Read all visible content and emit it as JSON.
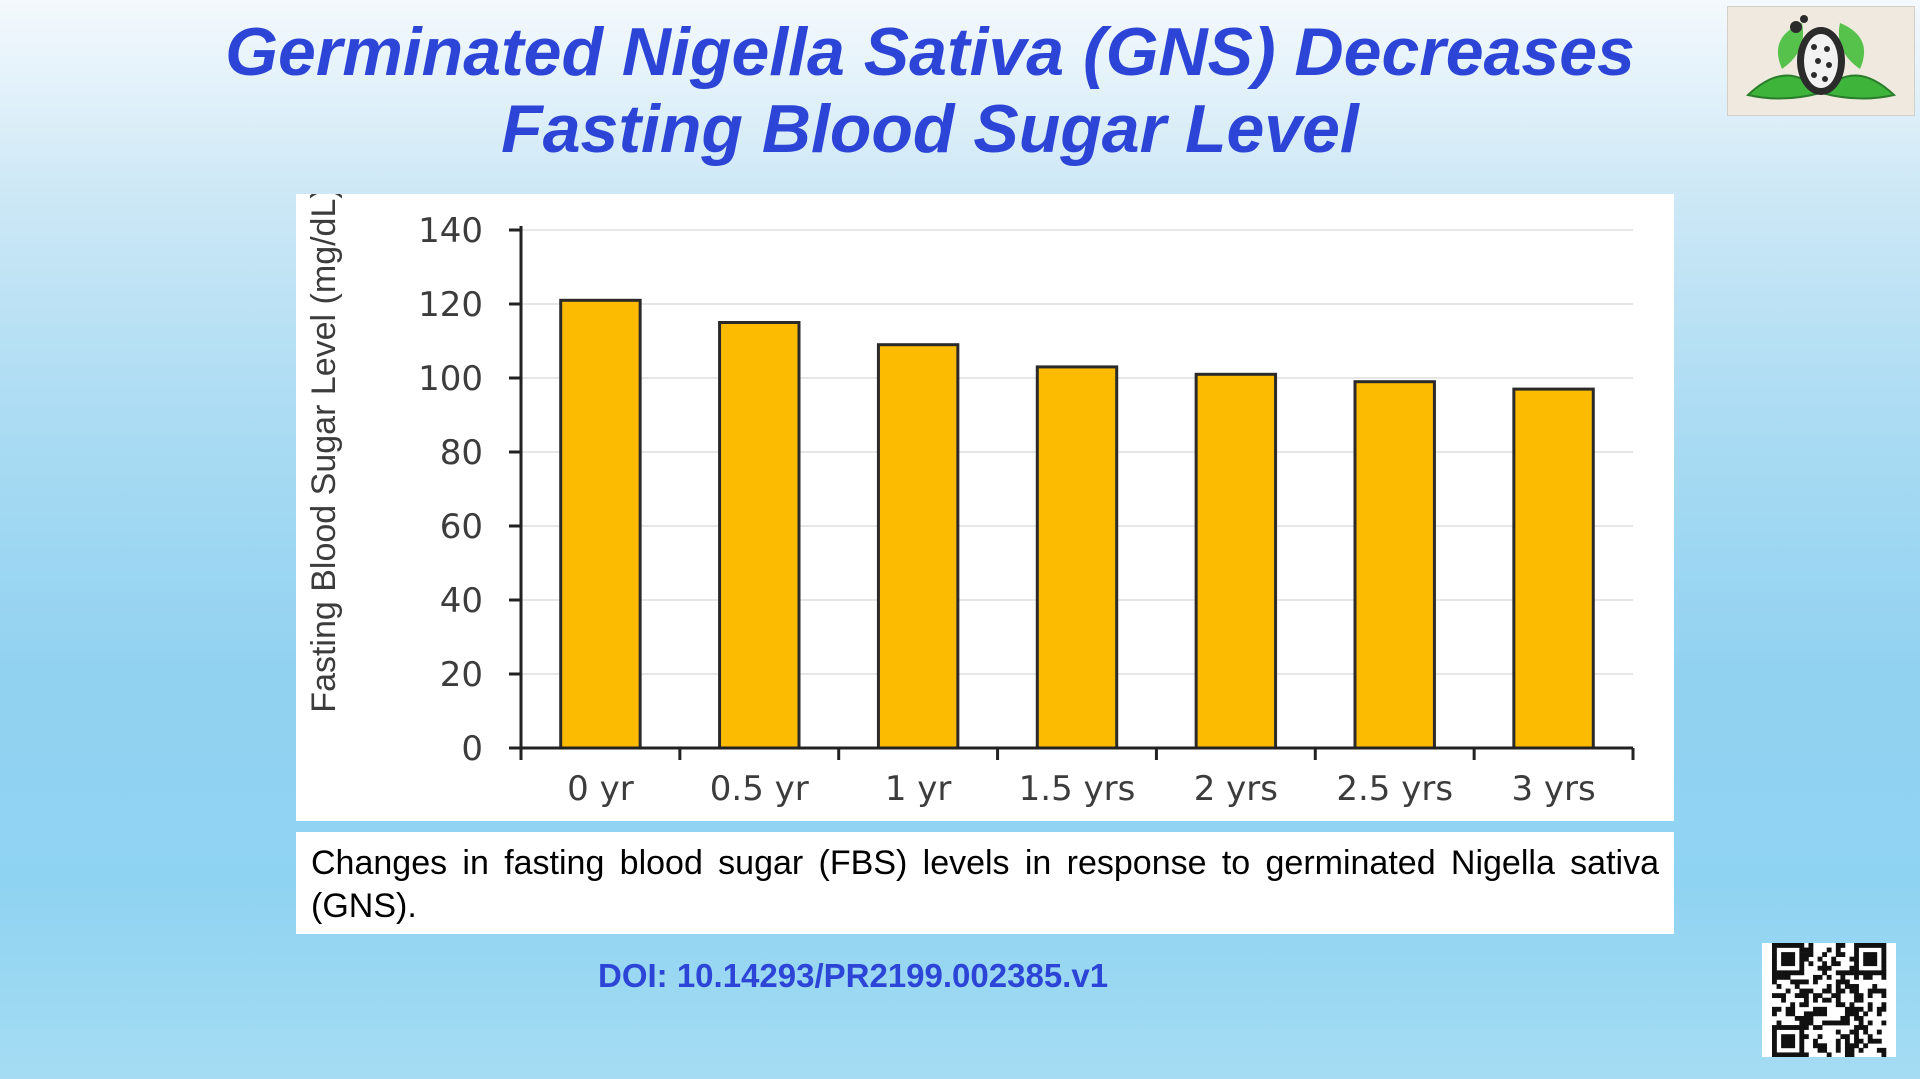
{
  "slide": {
    "title_line1": "Germinated Nigella Sativa (GNS) Decreases",
    "title_line2": "Fasting Blood Sugar Level",
    "caption": "Changes in fasting blood sugar (FBS) levels in response to germinated Nigella sativa (GNS).",
    "doi": "DOI: 10.14293/PR2199.002385.v1",
    "logo_icon": "leaf-logo-icon",
    "qr_icon": "qr-code-icon"
  },
  "colors": {
    "title": "#2c45d6",
    "bar_fill": "#fdbb00",
    "bar_stroke": "#2a2a2a",
    "gridline": "#e6e6e6",
    "axis": "#222222"
  },
  "chart_data": {
    "type": "bar",
    "title": "",
    "xlabel": "",
    "ylabel": "Fasting Blood Sugar Level (mg/dL)",
    "categories": [
      "0 yr",
      "0.5 yr",
      "1 yr",
      "1.5 yrs",
      "2 yrs",
      "2.5 yrs",
      "3 yrs"
    ],
    "values": [
      121,
      115,
      109,
      103,
      101,
      99,
      97
    ],
    "ylim": [
      0,
      140
    ],
    "yticks": [
      0,
      20,
      40,
      60,
      80,
      100,
      120,
      140
    ],
    "grid": true,
    "legend": "none"
  }
}
